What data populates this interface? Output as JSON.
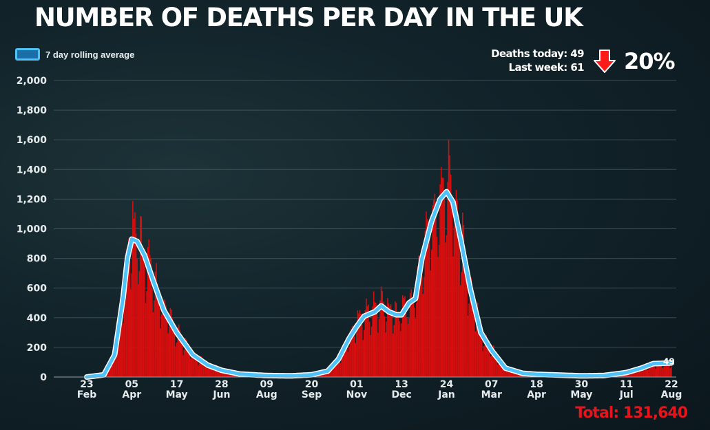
{
  "title": "NUMBER OF DEATHS PER DAY IN THE UK",
  "legend": {
    "label": "7 day rolling average"
  },
  "stats": {
    "deaths_today": "Deaths today: 49",
    "last_week": "Last week: 61",
    "change": "20%"
  },
  "total": "Total: 131,640",
  "colors": {
    "bars": "#d80e0e",
    "average_line": "#4fc3f7",
    "average_outline": "#ffffff",
    "total": "#e8141b",
    "arrow": "#ff1a1a"
  },
  "icons": {
    "arrow": "down-arrow-icon"
  },
  "chart_data": {
    "type": "bar",
    "title": "NUMBER OF DEATHS PER DAY IN THE UK",
    "xlabel": "",
    "ylabel": "",
    "ylim": [
      0,
      2000
    ],
    "yticks": [
      "0",
      "200",
      "400",
      "600",
      "800",
      "1,000",
      "1,200",
      "1,400",
      "1,600",
      "1,800",
      "2,000"
    ],
    "xticks": [
      {
        "day": "23",
        "month": "Feb"
      },
      {
        "day": "05",
        "month": "Apr"
      },
      {
        "day": "17",
        "month": "May"
      },
      {
        "day": "28",
        "month": "Jun"
      },
      {
        "day": "09",
        "month": "Aug"
      },
      {
        "day": "20",
        "month": "Sep"
      },
      {
        "day": "01",
        "month": "Nov"
      },
      {
        "day": "13",
        "month": "Dec"
      },
      {
        "day": "24",
        "month": "Jan"
      },
      {
        "day": "07",
        "month": "Mar"
      },
      {
        "day": "18",
        "month": "Apr"
      },
      {
        "day": "30",
        "month": "May"
      },
      {
        "day": "11",
        "month": "Jul"
      },
      {
        "day": "22",
        "month": "Aug"
      }
    ],
    "grid": true,
    "legend_position": "top-left",
    "series": [
      {
        "kind": "bar",
        "description": "daily deaths"
      },
      {
        "name": "7 day rolling average",
        "kind": "line"
      }
    ],
    "average_profile": {
      "2020-02-23": 0,
      "2020-03-10": 15,
      "2020-03-20": 150,
      "2020-03-28": 540,
      "2020-04-01": 800,
      "2020-04-05": 930,
      "2020-04-10": 915,
      "2020-04-17": 820,
      "2020-04-25": 650,
      "2020-05-05": 450,
      "2020-05-17": 300,
      "2020-06-01": 150,
      "2020-06-15": 80,
      "2020-06-28": 45,
      "2020-07-15": 20,
      "2020-08-09": 10,
      "2020-09-01": 8,
      "2020-09-20": 15,
      "2020-10-05": 40,
      "2020-10-15": 120,
      "2020-10-25": 260,
      "2020-11-01": 340,
      "2020-11-08": 410,
      "2020-11-18": 440,
      "2020-11-24": 480,
      "2020-12-01": 440,
      "2020-12-08": 420,
      "2020-12-13": 420,
      "2020-12-20": 500,
      "2020-12-26": 530,
      "2021-01-01": 800,
      "2021-01-10": 1050,
      "2021-01-18": 1200,
      "2021-01-24": 1250,
      "2021-01-30": 1180,
      "2021-02-07": 900,
      "2021-02-15": 600,
      "2021-02-25": 300,
      "2021-03-07": 180,
      "2021-03-20": 60,
      "2021-04-05": 25,
      "2021-04-18": 18,
      "2021-05-30": 8,
      "2021-06-20": 10,
      "2021-07-11": 30,
      "2021-07-25": 60,
      "2021-08-05": 90,
      "2021-08-22": 95
    },
    "latest_value": "49",
    "total": "Total: 131,640"
  }
}
